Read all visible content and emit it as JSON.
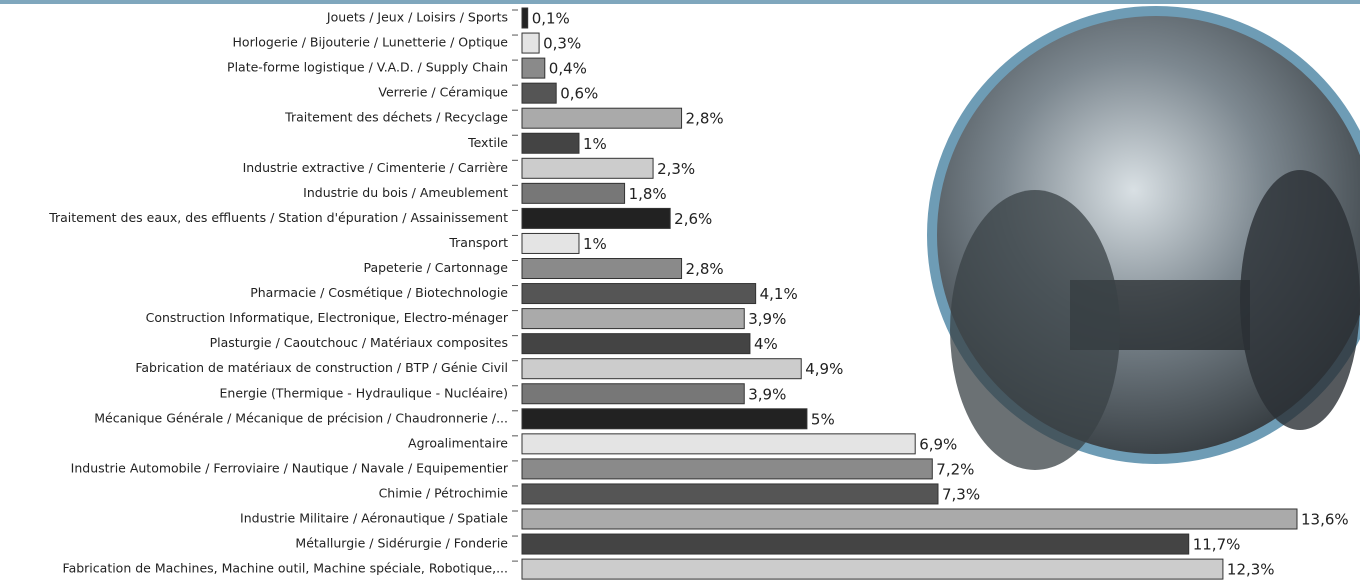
{
  "chart_data": {
    "type": "bar",
    "orientation": "horizontal",
    "categories": [
      "Jouets / Jeux / Loisirs / Sports",
      "Horlogerie / Bijouterie / Lunetterie / Optique",
      "Plate-forme logistique / V.A.D. / Supply Chain",
      "Verrerie / Céramique",
      "Traitement des déchets / Recyclage",
      "Textile",
      "Industrie extractive / Cimenterie / Carrière",
      "Industrie du bois / Ameublement",
      "Traitement des eaux, des effluents / Station d'épuration / Assainissement",
      "Transport",
      "Papeterie / Cartonnage",
      "Pharmacie / Cosmétique / Biotechnologie",
      "Construction Informatique, Electronique, Electro-ménager",
      "Plasturgie / Caoutchouc / Matériaux composites",
      "Fabrication de matériaux de construction / BTP / Génie Civil",
      "Energie (Thermique - Hydraulique - Nucléaire)",
      "Mécanique Générale / Mécanique de précision / Chaudronnerie /...",
      "Agroalimentaire",
      "Industrie Automobile / Ferroviaire / Nautique / Navale / Equipementier",
      "Chimie / Pétrochimie",
      "Industrie Militaire / Aéronautique / Spatiale",
      "Métallurgie / Sidérurgie / Fonderie",
      "Fabrication de Machines, Machine outil, Machine spéciale, Robotique,..."
    ],
    "values": [
      0.1,
      0.3,
      0.4,
      0.6,
      2.8,
      1,
      2.3,
      1.8,
      2.6,
      1,
      2.8,
      4.1,
      3.9,
      4,
      4.9,
      3.9,
      5,
      6.9,
      7.2,
      7.3,
      13.6,
      11.7,
      12.3
    ],
    "value_labels": [
      "0,1%",
      "0,3%",
      "0,4%",
      "0,6%",
      "2,8%",
      "1%",
      "2,3%",
      "1,8%",
      "2,6%",
      "1%",
      "2,8%",
      "4,1%",
      "3,9%",
      "4%",
      "4,9%",
      "3,9%",
      "5%",
      "6,9%",
      "7,2%",
      "7,3%",
      "13,6%",
      "11,7%",
      "12,3%"
    ],
    "colors": [
      "#222222",
      "#e4e4e4",
      "#8a8a8a",
      "#555555",
      "#aaaaaa",
      "#444444",
      "#cccccc",
      "#777777",
      "#222222",
      "#e4e4e4",
      "#8a8a8a",
      "#555555",
      "#aaaaaa",
      "#444444",
      "#cccccc",
      "#777777",
      "#222222",
      "#e4e4e4",
      "#8a8a8a",
      "#555555",
      "#aaaaaa",
      "#444444",
      "#cccccc"
    ]
  }
}
